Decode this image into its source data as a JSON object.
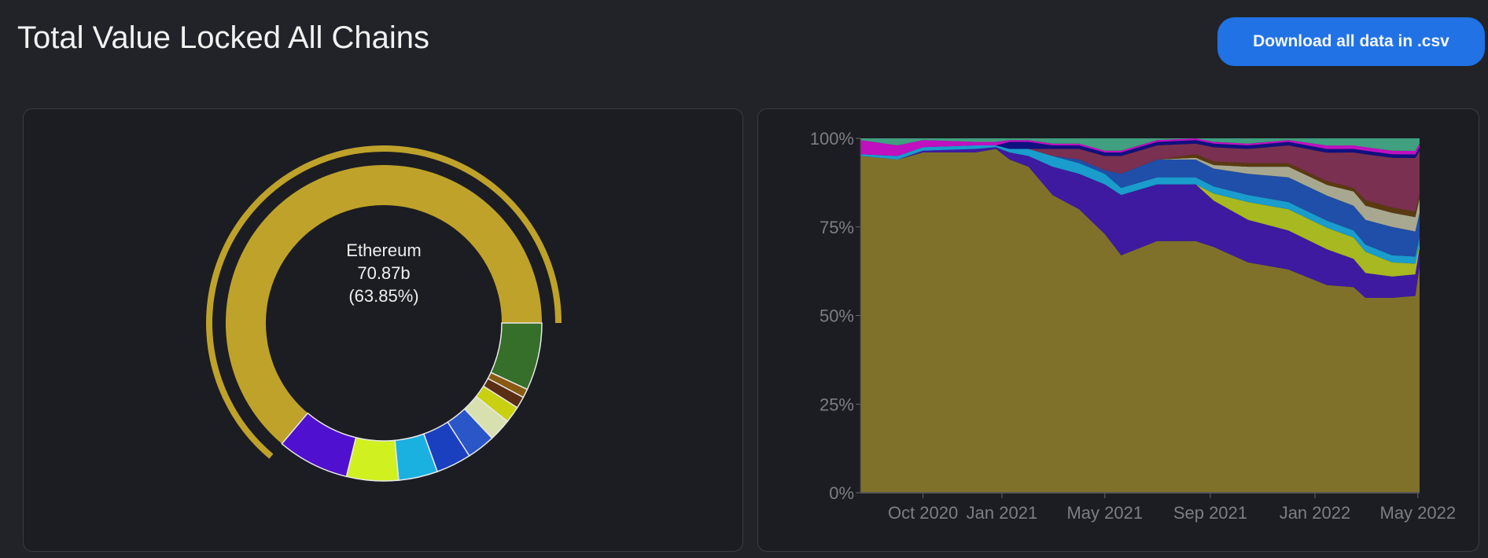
{
  "header": {
    "title": "Total Value Locked All Chains",
    "download_button_label": "Download all data in .csv"
  },
  "colors": {
    "accent": "#2172e5",
    "background": "#222328",
    "panel": "#1c1d22"
  },
  "chart_data": [
    {
      "type": "pie",
      "variant": "donut",
      "center_label": {
        "name": "Ethereum",
        "value": "70.87b",
        "percent": "(63.85%)"
      },
      "highlighted_slice": "Ethereum",
      "slices": [
        {
          "name": "Ethereum",
          "percent": 63.85,
          "color": "#bfa22a"
        },
        {
          "percent": 6.9,
          "color": "#356f2a"
        },
        {
          "percent": 0.9,
          "color": "#8a5a10"
        },
        {
          "percent": 1.2,
          "color": "#5a2e14"
        },
        {
          "percent": 1.7,
          "color": "#c8d010"
        },
        {
          "percent": 2.3,
          "color": "#d8e0b0"
        },
        {
          "percent": 2.9,
          "color": "#2a56c8"
        },
        {
          "percent": 3.6,
          "color": "#1a40c0"
        },
        {
          "percent": 4.0,
          "color": "#1ab0e0"
        },
        {
          "percent": 5.3,
          "color": "#d0f020"
        },
        {
          "percent": 7.35,
          "color": "#5010d0"
        }
      ]
    },
    {
      "type": "area",
      "stacked": "percent",
      "ylim": [
        0,
        100
      ],
      "yticks": [
        "0%",
        "25%",
        "50%",
        "75%",
        "100%"
      ],
      "ytick_values": [
        0,
        25,
        50,
        75,
        100
      ],
      "xticks": [
        "Oct 2020",
        "Jan 2021",
        "May 2021",
        "Sep 2021",
        "Jan 2022",
        "May 2022"
      ],
      "xtick_dates": [
        "2020-10-01",
        "2021-01-01",
        "2021-05-01",
        "2021-09-01",
        "2022-01-01",
        "2022-05-01"
      ],
      "xlim": [
        "2020-07-20",
        "2022-05-03"
      ],
      "x": [
        "2020-07-20",
        "2020-09-01",
        "2020-10-01",
        "2020-12-01",
        "2020-12-25",
        "2021-01-10",
        "2021-02-01",
        "2021-03-01",
        "2021-04-01",
        "2021-05-01",
        "2021-05-20",
        "2021-07-01",
        "2021-08-15",
        "2021-09-05",
        "2021-10-15",
        "2021-12-01",
        "2022-01-15",
        "2022-02-15",
        "2022-03-01",
        "2022-04-01",
        "2022-04-28",
        "2022-05-03"
      ],
      "series": [
        {
          "color": "#7f712a",
          "values": [
            95,
            94,
            96,
            96,
            97,
            94,
            92,
            84,
            80,
            73,
            67,
            71,
            71,
            69,
            65,
            63,
            58,
            58,
            55,
            55,
            55,
            64
          ]
        },
        {
          "color": "#3e1aa0",
          "values": [
            0,
            0,
            0.5,
            1,
            0.5,
            2,
            3,
            8,
            10,
            14,
            17,
            16,
            16,
            13,
            12,
            11,
            10,
            8,
            7,
            6,
            6,
            5
          ]
        },
        {
          "color": "#a8b820",
          "values": [
            0,
            0,
            0,
            0,
            0,
            0,
            0,
            0,
            0,
            0,
            0,
            0,
            0,
            2,
            5,
            6,
            6,
            6,
            6,
            4,
            3,
            1
          ]
        },
        {
          "color": "#1a9ccc",
          "values": [
            0.5,
            1,
            1,
            1,
            0.5,
            1,
            2,
            3,
            3,
            3,
            2,
            2,
            2,
            2,
            2,
            2,
            2,
            2,
            2,
            2,
            2,
            2
          ]
        },
        {
          "color": "#1f4fa8",
          "values": [
            0,
            0,
            0,
            0,
            0,
            0,
            0,
            0,
            1,
            1,
            4,
            5,
            5,
            5,
            6,
            7,
            7,
            7,
            7,
            8,
            7,
            7
          ]
        },
        {
          "color": "#a8a890",
          "values": [
            0,
            0,
            0,
            0,
            0,
            0,
            0,
            0,
            0,
            0,
            0,
            0,
            0.5,
            1,
            2,
            3,
            3,
            4,
            4,
            4,
            4,
            4
          ]
        },
        {
          "color": "#5a3a10",
          "values": [
            0,
            0,
            0,
            0,
            0,
            0,
            0,
            0,
            0,
            0,
            0,
            0,
            1,
            1,
            1,
            1,
            1,
            1,
            1.5,
            1.5,
            1.5,
            1.5
          ]
        },
        {
          "color": "#7a3050",
          "values": [
            0,
            0,
            0,
            0,
            0,
            0,
            0,
            2,
            3,
            4,
            5,
            4,
            3,
            4,
            4,
            5,
            8,
            10,
            13,
            14,
            15,
            12
          ]
        },
        {
          "color": "#101080",
          "values": [
            0,
            0,
            0,
            0,
            0,
            2,
            2,
            1,
            1,
            1,
            1,
            1,
            1,
            1,
            1,
            1,
            1,
            1,
            1,
            1,
            1,
            1
          ]
        },
        {
          "color": "#c010c0",
          "values": [
            4,
            3,
            2,
            1,
            1,
            0.5,
            0.5,
            0.5,
            0.5,
            0.5,
            0.5,
            0.5,
            0.5,
            0.5,
            0.5,
            0.5,
            1,
            1,
            1,
            1,
            1,
            1
          ]
        },
        {
          "color": "#40a080",
          "values": [
            0.5,
            2,
            0.5,
            1,
            1,
            0.5,
            0.5,
            1.5,
            1.5,
            3.5,
            3.5,
            0.5,
            0,
            1,
            1.5,
            0.5,
            2,
            2,
            2.5,
            3.5,
            3.5,
            1.5
          ]
        }
      ]
    }
  ]
}
